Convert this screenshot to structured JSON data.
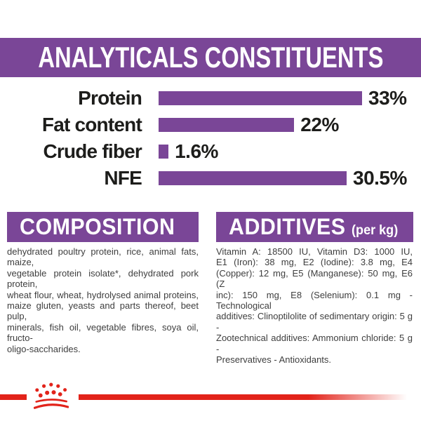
{
  "header": {
    "title": "ANALYTICALS CONSTITUENTS"
  },
  "chart_data": {
    "type": "bar",
    "orientation": "horizontal",
    "title": "ANALYTICALS CONSTITUENTS",
    "categories": [
      "Protein",
      "Fat content",
      "Crude fiber",
      "NFE"
    ],
    "values": [
      33,
      22,
      1.6,
      30.5
    ],
    "unit": "%",
    "xlim": [
      0,
      33
    ],
    "grid": false,
    "legend": false,
    "bar_color": "#7a4697",
    "rows": [
      {
        "label": "Protein",
        "value": 33,
        "display": "33%"
      },
      {
        "label": "Fat content",
        "value": 22,
        "display": "22%"
      },
      {
        "label": "Crude fiber",
        "value": 1.6,
        "display": "1.6%"
      },
      {
        "label": "NFE",
        "value": 30.5,
        "display": "30.5%"
      }
    ]
  },
  "composition": {
    "heading": "COMPOSITION",
    "lines": [
      "dehydrated poultry protein, rice, animal fats, maize,",
      "vegetable protein isolate*, dehydrated pork protein,",
      "wheat flour, wheat, hydrolysed animal proteins,",
      "maize gluten, yeasts and parts thereof, beet pulp,",
      "minerals, fish oil, vegetable fibres, soya oil, fructo-",
      "oligo-saccharides."
    ]
  },
  "additives": {
    "heading": "ADDITIVES",
    "unit_label": "(per kg)",
    "lines": [
      "Vitamin A: 18500 IU, Vitamin D3: 1000 IU,",
      "E1 (Iron): 38 mg, E2 (Iodine): 3.8 mg, E4",
      "(Copper): 12 mg, E5 (Manganese): 50 mg, E6 (Z",
      "inc): 150 mg, E8 (Selenium): 0.1 mg -Technological",
      "additives: Clinoptilolite of sedimentary origin: 5 g -",
      "Zootechnical additives: Ammonium chloride: 5 g -",
      "Preservatives - Antioxidants."
    ]
  },
  "footer": {
    "brand_mark": "royal-canin-crown",
    "stripe_color": "#e2231a"
  },
  "colors": {
    "accent_purple": "#7a4697",
    "brand_red": "#e2231a",
    "text_dark": "#1d1d1b",
    "text_body": "#3e3e3e",
    "background": "#ffffff"
  }
}
